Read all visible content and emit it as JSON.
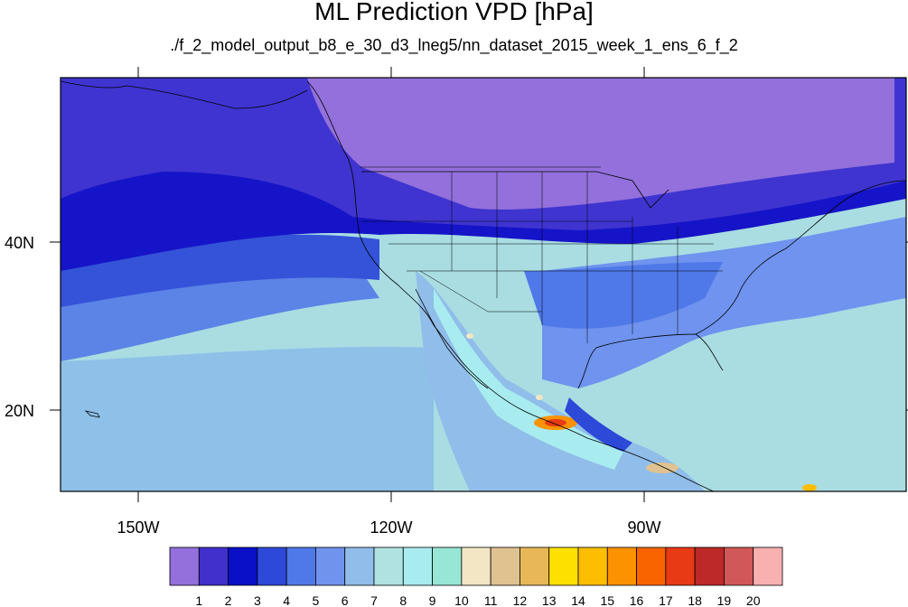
{
  "header": {
    "title": "ML Prediction VPD [hPa]",
    "subtitle": "./f_2_model_output_b8_e_30_d3_lneg5/nn_dataset_2015_week_1_ens_6_f_2"
  },
  "axes": {
    "lon_labels": [
      "150W",
      "120W",
      "90W"
    ],
    "lat_labels": [
      "40N",
      "20N"
    ]
  },
  "colorbar": {
    "labels": [
      "1",
      "2",
      "3",
      "4",
      "5",
      "6",
      "7",
      "8",
      "9",
      "10",
      "11",
      "12",
      "13",
      "14",
      "15",
      "16",
      "17",
      "18",
      "19",
      "20"
    ],
    "colors": [
      "#9370db",
      "#4030cc",
      "#0a10c8",
      "#2c49d8",
      "#4f78e8",
      "#7093ee",
      "#90bde9",
      "#b0e2e2",
      "#a8ecef",
      "#98e6d6",
      "#f2e6c4",
      "#dfc290",
      "#e8b858",
      "#fde000",
      "#fdbd00",
      "#fc9200",
      "#f96300",
      "#e83a14",
      "#bd2828",
      "#d05858",
      "#f9b0b0"
    ]
  },
  "map": {
    "extent": {
      "lon_min": -160,
      "lon_max": -60,
      "lat_min": 10,
      "lat_max": 59
    },
    "ocean_bg": "#a6d6e6"
  }
}
